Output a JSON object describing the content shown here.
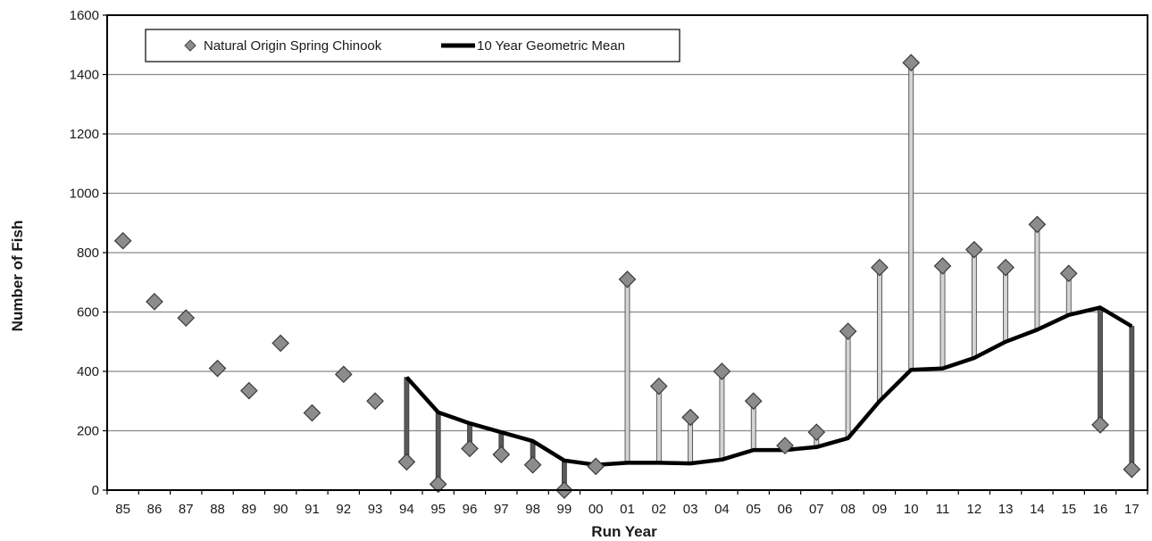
{
  "chart_data": {
    "type": "line",
    "xlabel": "Run Year",
    "ylabel": "Number of Fish",
    "ylim": [
      0,
      1600
    ],
    "yticks": [
      0,
      200,
      400,
      600,
      800,
      1000,
      1200,
      1400,
      1600
    ],
    "categories": [
      "85",
      "86",
      "87",
      "88",
      "89",
      "90",
      "91",
      "92",
      "93",
      "94",
      "95",
      "96",
      "97",
      "98",
      "99",
      "00",
      "01",
      "02",
      "03",
      "04",
      "05",
      "06",
      "07",
      "08",
      "09",
      "10",
      "11",
      "12",
      "13",
      "14",
      "15",
      "16",
      "17"
    ],
    "grid": "horizontal",
    "legend_position": "top-left",
    "series": [
      {
        "name": "Natural Origin Spring Chinook",
        "marker": "diamond",
        "color": "#8c8c8c",
        "values": [
          840,
          635,
          580,
          410,
          335,
          495,
          260,
          390,
          300,
          95,
          20,
          140,
          120,
          85,
          0,
          80,
          710,
          350,
          245,
          400,
          300,
          150,
          195,
          535,
          750,
          1440,
          755,
          810,
          750,
          895,
          730,
          220,
          70
        ]
      },
      {
        "name": "10 Year Geometric Mean",
        "marker": "line",
        "color": "#000000",
        "values": [
          null,
          null,
          null,
          null,
          null,
          null,
          null,
          null,
          null,
          380,
          262,
          225,
          195,
          165,
          100,
          85,
          92,
          92,
          90,
          103,
          135,
          135,
          145,
          175,
          300,
          405,
          410,
          445,
          500,
          540,
          590,
          615,
          552
        ]
      }
    ],
    "drop_lines": {
      "above_color": "#d4d4d4",
      "below_color": "#595959"
    }
  }
}
